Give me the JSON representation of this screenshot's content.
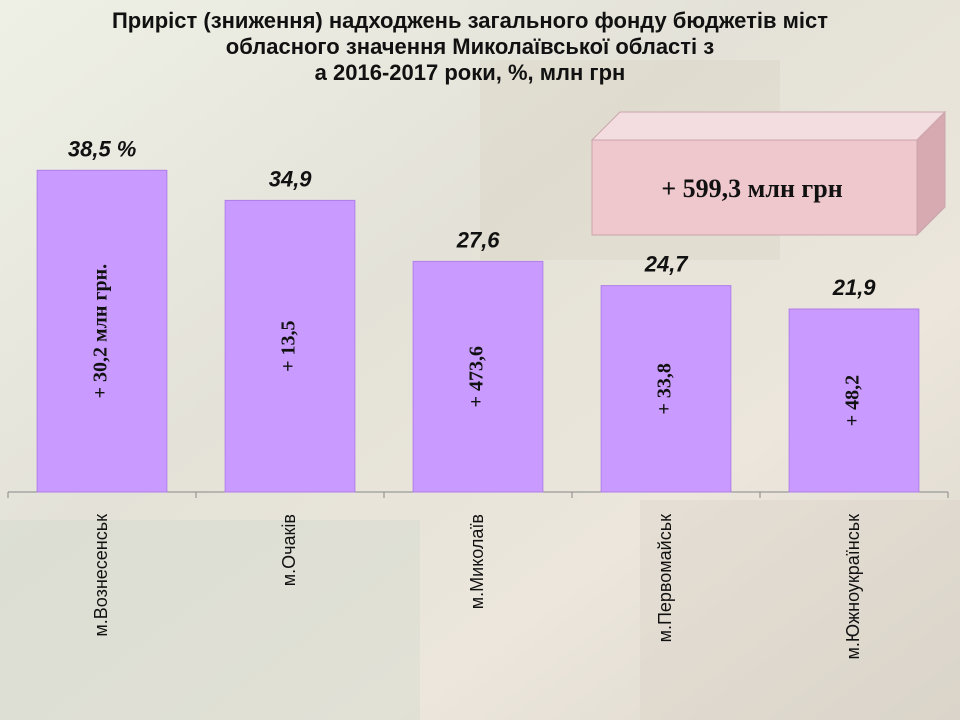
{
  "chart_data": {
    "type": "bar",
    "title": [
      "Приріст (зниження)  надходжень  загального фонду бюджетів міст",
      "обласного значення Миколаївської області з",
      "а 2016-2017 роки, %, млн грн"
    ],
    "categories": [
      "м.Вознесенськ",
      "м.Очаків",
      "м.Миколаїв",
      "м.Первомайськ",
      "м.Южноукраїнськ"
    ],
    "values": [
      38.5,
      34.9,
      27.6,
      24.7,
      21.9
    ],
    "value_labels": [
      "38,5 %",
      "34,9",
      "27,6",
      "24,7",
      "21,9"
    ],
    "inner_labels": [
      "+ 30,2  млн грн.",
      "+ 13,5",
      "+ 473,6",
      "+ 33,8",
      "+ 48,2"
    ],
    "annotation": "+ 599,3 млн грн",
    "color": "#c99aff",
    "ylim": [
      0,
      45
    ]
  }
}
